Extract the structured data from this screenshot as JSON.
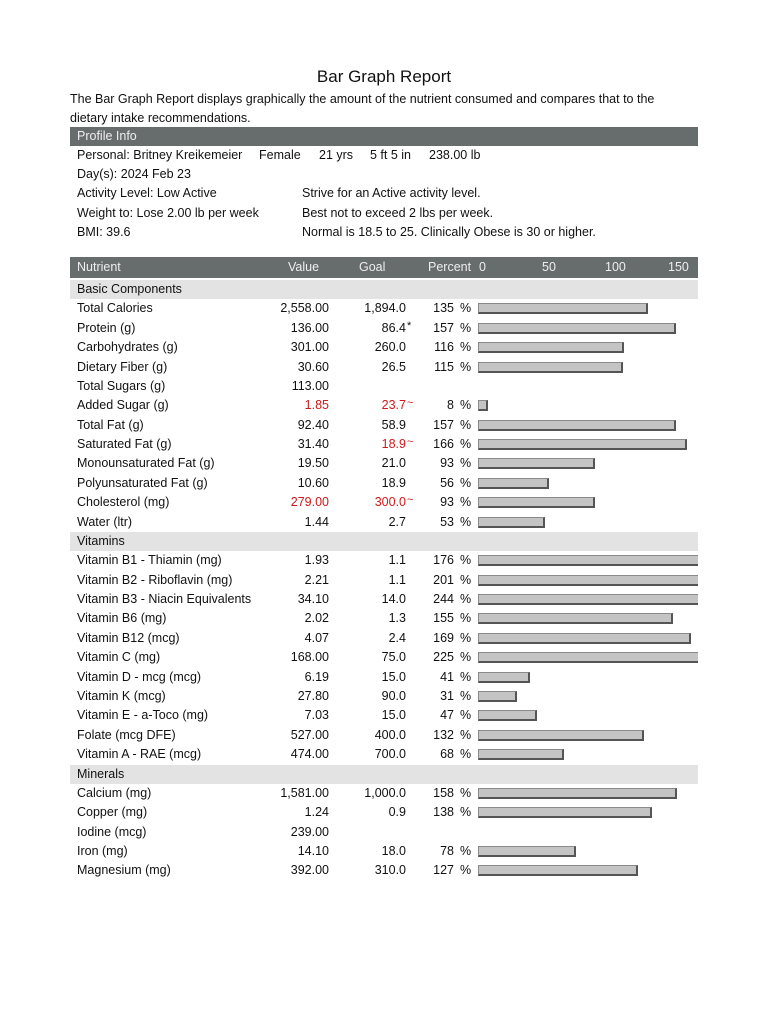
{
  "title": "Bar Graph Report",
  "intro": "The Bar Graph Report displays graphically the amount of the nutrient consumed and compares that to the dietary intake recommendations.",
  "profile": {
    "header": "Profile Info",
    "personal": [
      "Personal: Britney Kreikemeier",
      "Female",
      "21 yrs",
      "5 ft 5 in",
      "238.00 lb"
    ],
    "rows": [
      [
        "Day(s):  2024 Feb 23",
        null
      ],
      [
        "Activity Level: Low Active",
        "Strive for an Active activity level."
      ],
      [
        "Weight to: Lose 2.00 lb per week",
        "Best not to exceed 2 lbs per week."
      ],
      [
        "BMI: 39.6",
        "Normal is 18.5 to 25.  Clinically Obese is 30 or higher."
      ]
    ]
  },
  "table": {
    "columns": [
      "Nutrient",
      "Value",
      "Goal",
      "Percent"
    ],
    "percent_unit": "%",
    "scale_ticks": [
      0,
      50,
      100,
      150
    ],
    "sections": [
      {
        "name": "Basic Components",
        "rows": [
          {
            "nutrient": "Total Calories",
            "value": "2,558.00",
            "goal": "1,894.0",
            "percent": 135
          },
          {
            "nutrient": "Protein (g)",
            "value": "136.00",
            "goal": "86.4",
            "goal_mark": "*",
            "percent": 157
          },
          {
            "nutrient": "Carbohydrates (g)",
            "value": "301.00",
            "goal": "260.0",
            "percent": 116
          },
          {
            "nutrient": "Dietary Fiber (g)",
            "value": "30.60",
            "goal": "26.5",
            "percent": 115
          },
          {
            "nutrient": "Total Sugars (g)",
            "value": "113.00"
          },
          {
            "nutrient": "Added Sugar (g)",
            "value": "1.85",
            "value_alert": true,
            "goal": "23.7",
            "goal_mark": "~",
            "goal_alert": true,
            "percent": 8
          },
          {
            "nutrient": "Total Fat (g)",
            "value": "92.40",
            "goal": "58.9",
            "percent": 157
          },
          {
            "nutrient": "Saturated Fat (g)",
            "value": "31.40",
            "goal": "18.9",
            "goal_mark": "~",
            "goal_alert": true,
            "percent": 166
          },
          {
            "nutrient": "Monounsaturated Fat (g)",
            "value": "19.50",
            "goal": "21.0",
            "percent": 93
          },
          {
            "nutrient": "Polyunsaturated Fat (g)",
            "value": "10.60",
            "goal": "18.9",
            "percent": 56
          },
          {
            "nutrient": "Cholesterol (mg)",
            "value": "279.00",
            "value_alert": true,
            "goal": "300.0",
            "goal_mark": "~",
            "goal_alert": true,
            "percent": 93
          },
          {
            "nutrient": "Water (ltr)",
            "value": "1.44",
            "goal": "2.7",
            "percent": 53
          }
        ]
      },
      {
        "name": "Vitamins",
        "rows": [
          {
            "nutrient": "Vitamin B1 - Thiamin (mg)",
            "value": "1.93",
            "goal": "1.1",
            "percent": 176
          },
          {
            "nutrient": "Vitamin B2 - Riboflavin (mg)",
            "value": "2.21",
            "goal": "1.1",
            "percent": 201
          },
          {
            "nutrient": "Vitamin B3 - Niacin Equivalents",
            "value": "34.10",
            "goal": "14.0",
            "percent": 244
          },
          {
            "nutrient": "Vitamin B6 (mg)",
            "value": "2.02",
            "goal": "1.3",
            "percent": 155
          },
          {
            "nutrient": "Vitamin B12 (mcg)",
            "value": "4.07",
            "goal": "2.4",
            "percent": 169
          },
          {
            "nutrient": "Vitamin C (mg)",
            "value": "168.00",
            "goal": "75.0",
            "percent": 225
          },
          {
            "nutrient": "Vitamin D - mcg (mcg)",
            "value": "6.19",
            "goal": "15.0",
            "percent": 41
          },
          {
            "nutrient": "Vitamin K (mcg)",
            "value": "27.80",
            "goal": "90.0",
            "percent": 31
          },
          {
            "nutrient": "Vitamin E - a-Toco (mg)",
            "value": "7.03",
            "goal": "15.0",
            "percent": 47
          },
          {
            "nutrient": "Folate (mcg DFE)",
            "value": "527.00",
            "goal": "400.0",
            "percent": 132
          },
          {
            "nutrient": "Vitamin A - RAE (mcg)",
            "value": "474.00",
            "goal": "700.0",
            "percent": 68
          }
        ]
      },
      {
        "name": "Minerals",
        "rows": [
          {
            "nutrient": "Calcium (mg)",
            "value": "1,581.00",
            "goal": "1,000.0",
            "percent": 158
          },
          {
            "nutrient": "Copper (mg)",
            "value": "1.24",
            "goal": "0.9",
            "percent": 138
          },
          {
            "nutrient": "Iodine (mcg)",
            "value": "239.00"
          },
          {
            "nutrient": "Iron (mg)",
            "value": "14.10",
            "goal": "18.0",
            "percent": 78
          },
          {
            "nutrient": "Magnesium (mg)",
            "value": "392.00",
            "goal": "310.0",
            "percent": 127
          }
        ]
      }
    ]
  }
}
